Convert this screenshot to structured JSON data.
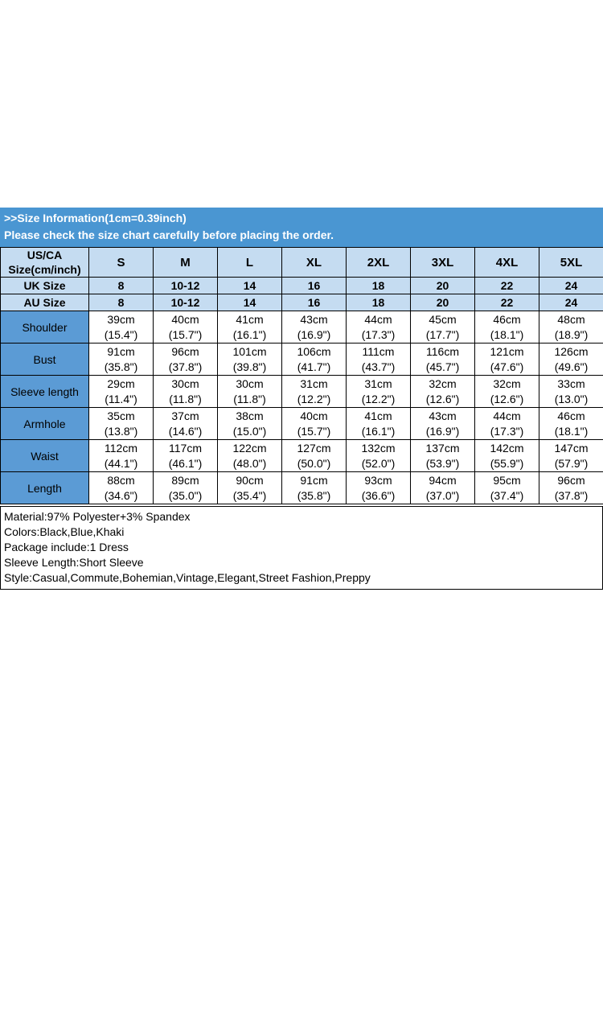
{
  "banner": {
    "line1": ">>Size Information(1cm=0.39inch)",
    "line2": "Please check the size chart carefully before placing the order."
  },
  "table": {
    "corner_label": "US/CA\nSize(cm/inch)",
    "sizes": [
      "S",
      "M",
      "L",
      "XL",
      "2XL",
      "3XL",
      "4XL",
      "5XL"
    ],
    "size_rows": [
      {
        "label": "UK Size",
        "values": [
          "8",
          "10-12",
          "14",
          "16",
          "18",
          "20",
          "22",
          "24"
        ]
      },
      {
        "label": "AU Size",
        "values": [
          "8",
          "10-12",
          "14",
          "16",
          "18",
          "20",
          "22",
          "24"
        ]
      }
    ],
    "measure_rows": [
      {
        "label": "Shoulder",
        "cells": [
          "39cm\n(15.4\")",
          "40cm\n(15.7\")",
          "41cm\n(16.1\")",
          "43cm\n(16.9\")",
          "44cm\n(17.3\")",
          "45cm\n(17.7\")",
          "46cm\n(18.1\")",
          "48cm\n(18.9\")"
        ]
      },
      {
        "label": "Bust",
        "cells": [
          "91cm\n(35.8\")",
          "96cm\n(37.8\")",
          "101cm\n(39.8\")",
          "106cm\n(41.7\")",
          "111cm\n(43.7\")",
          "116cm\n(45.7\")",
          "121cm\n(47.6\")",
          "126cm\n(49.6\")"
        ]
      },
      {
        "label": "Sleeve length",
        "cells": [
          "29cm\n(11.4\")",
          "30cm\n(11.8\")",
          "30cm\n(11.8\")",
          "31cm\n(12.2\")",
          "31cm\n(12.2\")",
          "32cm\n(12.6\")",
          "32cm\n(12.6\")",
          "33cm\n(13.0\")"
        ]
      },
      {
        "label": "Armhole",
        "cells": [
          "35cm\n(13.8\")",
          "37cm\n(14.6\")",
          "38cm\n(15.0\")",
          "40cm\n(15.7\")",
          "41cm\n(16.1\")",
          "43cm\n(16.9\")",
          "44cm\n(17.3\")",
          "46cm\n(18.1\")"
        ]
      },
      {
        "label": "Waist",
        "cells": [
          "112cm\n(44.1\")",
          "117cm\n(46.1\")",
          "122cm\n(48.0\")",
          "127cm\n(50.0\")",
          "132cm\n(52.0\")",
          "137cm\n(53.9\")",
          "142cm\n(55.9\")",
          "147cm\n(57.9\")"
        ]
      },
      {
        "label": "Length",
        "cells": [
          "88cm\n(34.6\")",
          "89cm\n(35.0\")",
          "90cm\n(35.4\")",
          "91cm\n(35.8\")",
          "93cm\n(36.6\")",
          "94cm\n(37.0\")",
          "95cm\n(37.4\")",
          "96cm\n(37.8\")"
        ]
      }
    ]
  },
  "details": {
    "lines": [
      "Material:97% Polyester+3% Spandex",
      "Colors:Black,Blue,Khaki",
      "Package include:1 Dress",
      "Sleeve Length:Short Sleeve",
      "Style:Casual,Commute,Bohemian,Vintage,Elegant,Street Fashion,Preppy"
    ]
  },
  "colors": {
    "banner_bg": "#4a96d2",
    "banner_text": "#ffffff",
    "header_bg": "#c5dcf1",
    "label_bg": "#5b9bd5",
    "border": "#000000"
  }
}
